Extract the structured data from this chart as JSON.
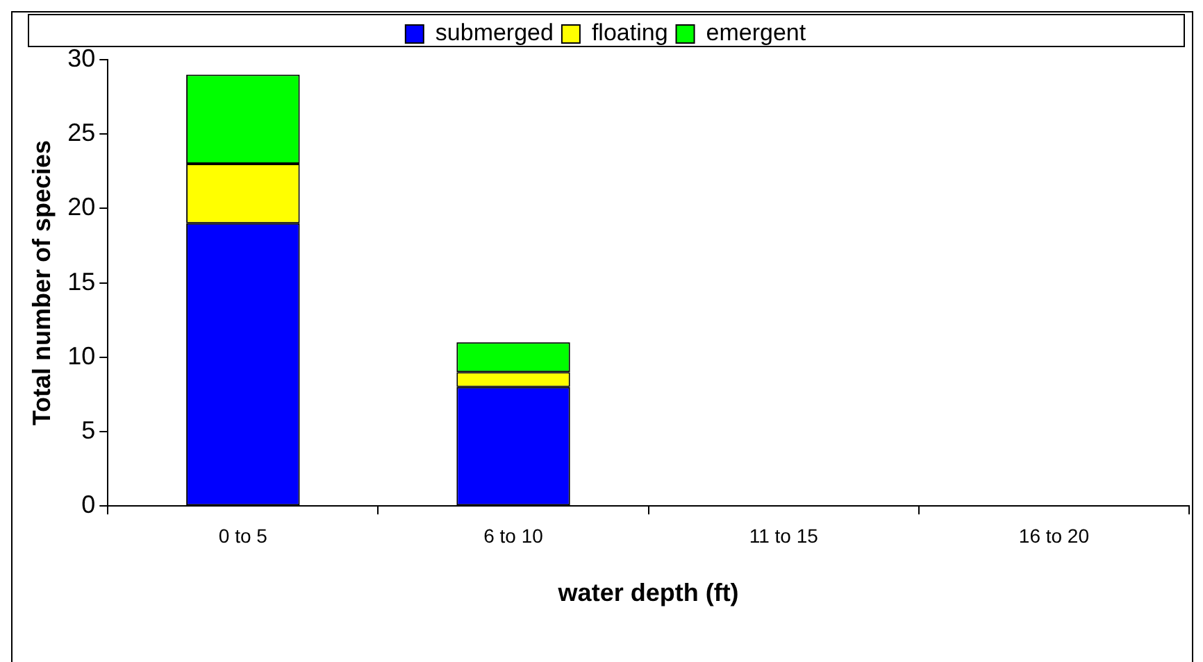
{
  "chart_data": {
    "type": "bar",
    "stacked": true,
    "xlabel": "water depth (ft)",
    "ylabel": "Total number of species",
    "categories": [
      "0 to 5",
      "6 to 10",
      "11 to 15",
      "16 to 20"
    ],
    "series": [
      {
        "name": "submerged",
        "color": "#0000ff",
        "values": [
          19,
          8,
          0,
          0
        ]
      },
      {
        "name": "floating",
        "color": "#ffff00",
        "values": [
          4,
          1,
          0,
          0
        ]
      },
      {
        "name": "emergent",
        "color": "#00ff00",
        "values": [
          6,
          2,
          0,
          0
        ]
      }
    ],
    "ylim": [
      0,
      30
    ],
    "yticks": [
      0,
      5,
      10,
      15,
      20,
      25,
      30
    ],
    "grid": false,
    "legend": "top"
  }
}
